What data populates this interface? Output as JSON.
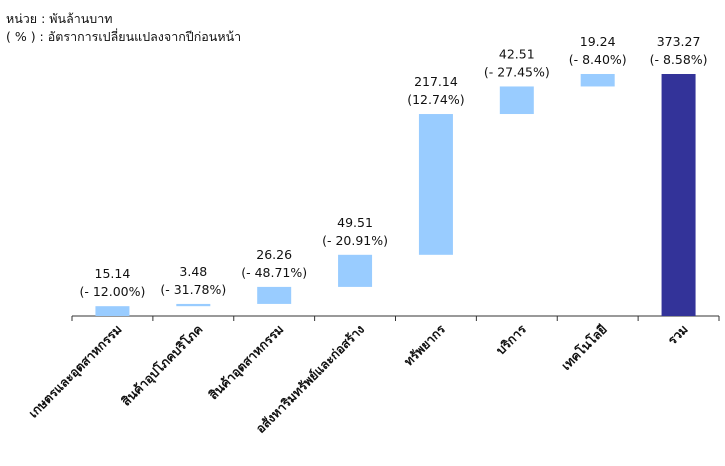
{
  "notes": {
    "unit": "หน่วย : พันล้านบาท",
    "percent": "( % ) : อัตราการเปลี่ยนแปลงจากปีก่อนหน้า"
  },
  "colors": {
    "segment": "#99ccff",
    "total": "#333399",
    "axis": "#333333"
  },
  "chart_data": {
    "type": "bar",
    "subtype": "waterfall",
    "categories": [
      "เกษตรและอุตสาหกรรม",
      "สินค้าอุปโภคบริโภค",
      "สินค้าอุตสาหกรรม",
      "อสังหาริมทรัพย์และก่อสร้าง",
      "ทรัพยากร",
      "บริการ",
      "เทคโนโลยี",
      "รวม"
    ],
    "values": [
      15.14,
      3.48,
      26.26,
      49.51,
      217.14,
      42.51,
      19.24,
      373.27
    ],
    "value_labels": [
      "15.14",
      "3.48",
      "26.26",
      "49.51",
      "217.14",
      "42.51",
      "19.24",
      "373.27"
    ],
    "change_labels": [
      "(- 12.00%)",
      "(- 31.78%)",
      "(- 48.71%)",
      "(- 20.91%)",
      "(12.74%)",
      "(- 27.45%)",
      "(- 8.40%)",
      "(- 8.58%)"
    ],
    "total_index": 7,
    "ylim": [
      0,
      373.27
    ],
    "grid": false,
    "legend": "none"
  }
}
